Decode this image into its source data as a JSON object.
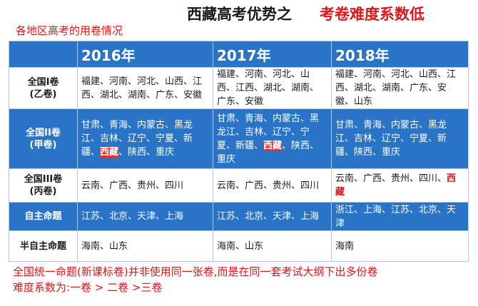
{
  "header": {
    "title": "西藏高考优势之",
    "accent": "考卷难度系数低"
  },
  "subtitle": "各地区高考的用卷情况",
  "table": {
    "years": [
      "2016年",
      "2017年",
      "2018年"
    ],
    "rows": [
      {
        "label_line1": "全国I卷",
        "label_line2": "(乙卷)",
        "y2016": "福建、河南、河北、山西、江西、湖北、湖南、广东、安徽",
        "y2017": "福建、河南、河北、山西、江西、湖北、湖南、广东、安徽",
        "y2018": "福建、河南、河北、山西、江西、湖北、湖南、广东、安徽、山东"
      },
      {
        "label_line1": "全国II卷",
        "label_line2": "(甲卷)",
        "y2016_before": "甘肃、青海、内蒙古、黑龙江、吉林、辽宁、宁夏、新疆、",
        "y2016_highlight": "西藏",
        "y2016_after": "、陕西、重庆",
        "y2017_before": "甘肃、青海、内蒙古、黑龙江、吉林、辽宁、宁夏、新疆、",
        "y2017_highlight": "西藏",
        "y2017_after": "、陕西、重庆",
        "y2018": "甘肃、青海、内蒙古、黑龙江、吉林、辽宁、宁夏、新疆、陕西、重庆"
      },
      {
        "label_line1": "全国III卷",
        "label_line2": "(丙卷)",
        "y2016": "云南、广西、贵州、四川",
        "y2017": "云南、广西、贵州、四川",
        "y2018_before": "云南、广西、贵州、四川、",
        "y2018_highlight": "西藏"
      },
      {
        "label_line1": "自主命题",
        "y2016": "江苏、北京、天津、上海",
        "y2017": "江苏、北京、天津、上海",
        "y2018": "浙江、上海、江苏、北京、天津"
      },
      {
        "label_line1": "半自主命题",
        "y2016": "海南、山东",
        "y2017": "海南、山东",
        "y2018": "海南"
      }
    ]
  },
  "footnote": {
    "line1": "全国统一命题(新课标卷)并非使用同一张卷,而是在同一套考试大纲下出多份卷",
    "line2": "难度系数为:一卷 > 二卷 >三卷"
  },
  "colors": {
    "header_blue": "#2a74c8",
    "accent_red": "#e0141c",
    "highlight_red": "#e62b2b"
  }
}
